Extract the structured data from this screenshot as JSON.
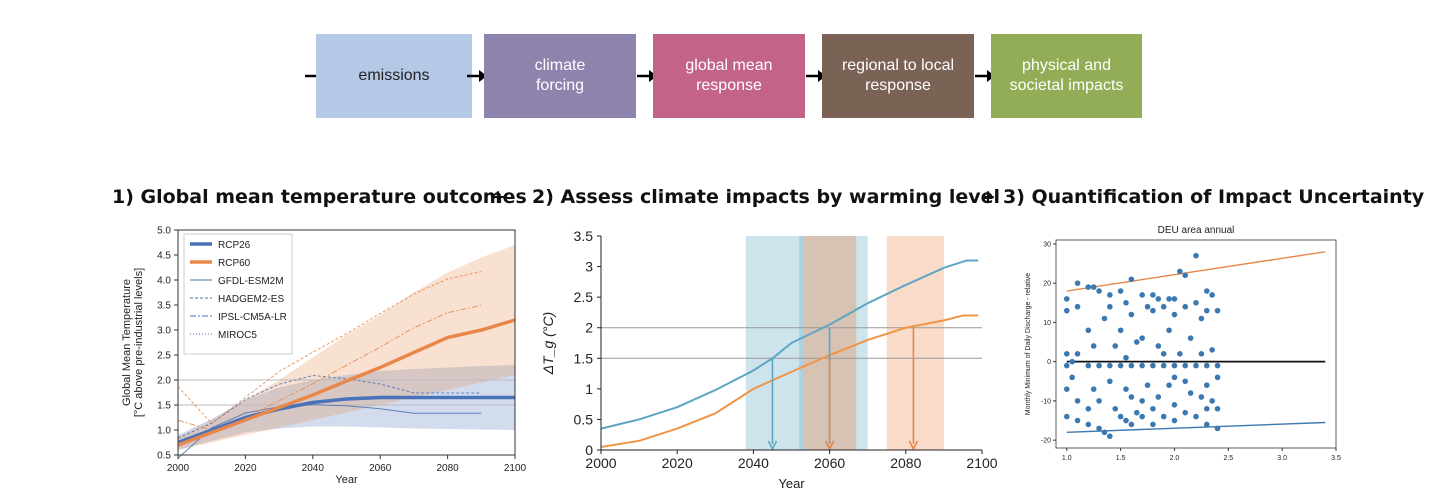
{
  "flow": {
    "steps": [
      {
        "label": "emissions",
        "color": "#b4c9e6"
      },
      {
        "label": "climate\nforcing",
        "color": "#8e83ad"
      },
      {
        "label": "global mean\nresponse",
        "color": "#c4638a"
      },
      {
        "label": "regional to local\nresponse",
        "color": "#7a6255"
      },
      {
        "label": "physical and\nsocietal impacts",
        "color": "#93ad56"
      }
    ]
  },
  "headings": {
    "step1": "1) Global mean temperature outcomes",
    "step2": "2) Assess climate impacts by warming level",
    "step3": "3) Quantification of Impact Uncertainty",
    "plus": "+"
  },
  "chart_data": [
    {
      "type": "line",
      "xlabel": "Year",
      "ylabel": "Global Mean Temperature\n[°C above pre-industrial levels]",
      "xlim": [
        2000,
        2100
      ],
      "ylim": [
        0.5,
        5.0
      ],
      "xticks": [
        2000,
        2020,
        2040,
        2060,
        2080,
        2100
      ],
      "yticks": [
        0.5,
        1.0,
        1.5,
        2.0,
        2.5,
        3.0,
        3.5,
        4.0,
        4.5,
        5.0
      ],
      "reference_lines": [
        1.5,
        2.0
      ],
      "legend_position": "top-left",
      "legend": [
        "RCP26",
        "RCP60",
        "GFDL-ESM2M",
        "HADGEM2-ES",
        "IPSL-CM5A-LR",
        "MIROC5"
      ],
      "colors": {
        "rcp26": "#4a72b8",
        "rcp60": "#e8874a"
      },
      "series": [
        {
          "name": "RCP26",
          "x": [
            2000,
            2010,
            2020,
            2030,
            2040,
            2050,
            2060,
            2070,
            2080,
            2090,
            2100
          ],
          "y": [
            0.75,
            1.0,
            1.25,
            1.42,
            1.55,
            1.62,
            1.65,
            1.65,
            1.65,
            1.65,
            1.65
          ],
          "band_low": [
            0.6,
            0.78,
            0.95,
            1.03,
            1.07,
            1.07,
            1.05,
            1.03,
            1.02,
            1.01,
            1.0
          ],
          "band_high": [
            0.9,
            1.22,
            1.6,
            1.85,
            2.0,
            2.1,
            2.18,
            2.22,
            2.25,
            2.28,
            2.3
          ]
        },
        {
          "name": "RCP60",
          "x": [
            2000,
            2010,
            2020,
            2030,
            2040,
            2050,
            2060,
            2070,
            2080,
            2090,
            2100
          ],
          "y": [
            0.7,
            0.95,
            1.2,
            1.45,
            1.7,
            1.98,
            2.25,
            2.55,
            2.85,
            3.0,
            3.2
          ],
          "band_low": [
            0.6,
            0.75,
            0.9,
            1.05,
            1.2,
            1.35,
            1.5,
            1.65,
            1.8,
            1.95,
            2.1
          ],
          "band_high": [
            0.85,
            1.2,
            1.6,
            2.0,
            2.45,
            2.9,
            3.3,
            3.75,
            4.15,
            4.45,
            4.7
          ]
        }
      ]
    },
    {
      "type": "line",
      "xlabel": "Year",
      "ylabel": "ΔT_g (°C)",
      "xlim": [
        2000,
        2100
      ],
      "ylim": [
        0,
        3.5
      ],
      "xticks": [
        2000,
        2020,
        2040,
        2060,
        2080,
        2100
      ],
      "yticks": [
        0,
        0.5,
        1,
        1.5,
        2,
        2.5,
        3,
        3.5
      ],
      "reference_lines": [
        1.5,
        2.0
      ],
      "colors": {
        "upper": "#5ea5c4",
        "lower": "#ef9545"
      },
      "series": [
        {
          "x": [
            2000,
            2010,
            2020,
            2030,
            2040,
            2045,
            2050,
            2060,
            2070,
            2080,
            2090,
            2096,
            2099
          ],
          "y": [
            0.35,
            0.5,
            0.7,
            0.98,
            1.3,
            1.5,
            1.75,
            2.05,
            2.4,
            2.7,
            2.98,
            3.1,
            3.1
          ]
        },
        {
          "x": [
            2000,
            2010,
            2020,
            2030,
            2040,
            2050,
            2060,
            2070,
            2080,
            2090,
            2095,
            2099
          ],
          "y": [
            0.05,
            0.15,
            0.35,
            0.6,
            1.0,
            1.28,
            1.55,
            1.8,
            2.0,
            2.12,
            2.2,
            2.2
          ]
        }
      ],
      "warming_level_windows": [
        {
          "from": 2038,
          "to": 2053,
          "color": "#5ea5c4"
        },
        {
          "from": 2052,
          "to": 2070,
          "color": "#5ea5c4"
        },
        {
          "from": 2053,
          "to": 2067,
          "color": "#e8874a"
        },
        {
          "from": 2075,
          "to": 2090,
          "color": "#e8874a"
        }
      ],
      "crossing_arrows": [
        {
          "year": 2045,
          "level": 1.5,
          "color": "#5ea5c4"
        },
        {
          "year": 2060,
          "level": 2.0,
          "color": "#5ea5c4"
        },
        {
          "year": 2060,
          "level": 1.5,
          "color": "#e8874a"
        },
        {
          "year": 2082,
          "level": 2.0,
          "color": "#e8874a"
        }
      ]
    },
    {
      "type": "scatter",
      "title": "DEU area annual",
      "ylabel": "Monthly Minimum of Daily Discharge - relative",
      "xlim": [
        0.9,
        3.5
      ],
      "ylim": [
        -22,
        31
      ],
      "xticks": [
        1.0,
        1.5,
        2.0,
        2.5,
        3.0,
        3.5
      ],
      "yticks": [
        -20,
        -10,
        0,
        10,
        20,
        30
      ],
      "point_color": "#3b78b0",
      "lines": [
        {
          "from": [
            1.0,
            18
          ],
          "to": [
            3.4,
            28
          ],
          "color": "#e8874a"
        },
        {
          "from": [
            1.0,
            0
          ],
          "to": [
            3.4,
            0
          ],
          "color": "#111111"
        },
        {
          "from": [
            1.0,
            -18
          ],
          "to": [
            3.4,
            -15.5
          ],
          "color": "#3b78b0"
        }
      ],
      "points": [
        [
          1.0,
          16
        ],
        [
          1.0,
          13
        ],
        [
          1.0,
          2
        ],
        [
          1.0,
          -1
        ],
        [
          1.0,
          -7
        ],
        [
          1.0,
          -14
        ],
        [
          1.05,
          0
        ],
        [
          1.05,
          -4
        ],
        [
          1.1,
          20
        ],
        [
          1.1,
          14
        ],
        [
          1.1,
          2
        ],
        [
          1.1,
          -10
        ],
        [
          1.1,
          -15
        ],
        [
          1.2,
          19
        ],
        [
          1.2,
          8
        ],
        [
          1.2,
          -1
        ],
        [
          1.2,
          -12
        ],
        [
          1.2,
          -16
        ],
        [
          1.25,
          19
        ],
        [
          1.25,
          4
        ],
        [
          1.25,
          -7
        ],
        [
          1.3,
          18
        ],
        [
          1.3,
          -1
        ],
        [
          1.3,
          -10
        ],
        [
          1.3,
          -17
        ],
        [
          1.35,
          11
        ],
        [
          1.35,
          -18
        ],
        [
          1.4,
          17
        ],
        [
          1.4,
          14
        ],
        [
          1.4,
          -1
        ],
        [
          1.4,
          -5
        ],
        [
          1.4,
          -19
        ],
        [
          1.45,
          4
        ],
        [
          1.45,
          -12
        ],
        [
          1.5,
          18
        ],
        [
          1.5,
          8
        ],
        [
          1.5,
          -1
        ],
        [
          1.5,
          -14
        ],
        [
          1.55,
          15
        ],
        [
          1.55,
          1
        ],
        [
          1.55,
          -7
        ],
        [
          1.55,
          -15
        ],
        [
          1.6,
          21
        ],
        [
          1.6,
          12
        ],
        [
          1.6,
          -1
        ],
        [
          1.6,
          -9
        ],
        [
          1.6,
          -16
        ],
        [
          1.65,
          5
        ],
        [
          1.65,
          -13
        ],
        [
          1.7,
          17
        ],
        [
          1.7,
          6
        ],
        [
          1.7,
          -1
        ],
        [
          1.7,
          -10
        ],
        [
          1.7,
          -14
        ],
        [
          1.75,
          14
        ],
        [
          1.75,
          -6
        ],
        [
          1.8,
          17
        ],
        [
          1.8,
          13
        ],
        [
          1.8,
          -1
        ],
        [
          1.8,
          -12
        ],
        [
          1.8,
          -16
        ],
        [
          1.85,
          16
        ],
        [
          1.85,
          4
        ],
        [
          1.85,
          -9
        ],
        [
          1.9,
          14
        ],
        [
          1.9,
          2
        ],
        [
          1.9,
          -1
        ],
        [
          1.9,
          -14
        ],
        [
          1.95,
          16
        ],
        [
          1.95,
          8
        ],
        [
          1.95,
          -6
        ],
        [
          2.0,
          16
        ],
        [
          2.0,
          12
        ],
        [
          2.0,
          -1
        ],
        [
          2.0,
          -4
        ],
        [
          2.0,
          -11
        ],
        [
          2.0,
          -15
        ],
        [
          2.05,
          23
        ],
        [
          2.05,
          2
        ],
        [
          2.1,
          22
        ],
        [
          2.1,
          14
        ],
        [
          2.1,
          -1
        ],
        [
          2.1,
          -5
        ],
        [
          2.1,
          -13
        ],
        [
          2.15,
          6
        ],
        [
          2.15,
          -8
        ],
        [
          2.2,
          27
        ],
        [
          2.2,
          15
        ],
        [
          2.2,
          -1
        ],
        [
          2.2,
          -14
        ],
        [
          2.25,
          11
        ],
        [
          2.25,
          2
        ],
        [
          2.25,
          -9
        ],
        [
          2.3,
          18
        ],
        [
          2.3,
          13
        ],
        [
          2.3,
          -1
        ],
        [
          2.3,
          -6
        ],
        [
          2.3,
          -12
        ],
        [
          2.3,
          -16
        ],
        [
          2.35,
          17
        ],
        [
          2.35,
          3
        ],
        [
          2.35,
          -10
        ],
        [
          2.4,
          13
        ],
        [
          2.4,
          -1
        ],
        [
          2.4,
          -4
        ],
        [
          2.4,
          -12
        ],
        [
          2.4,
          -17
        ]
      ]
    }
  ]
}
